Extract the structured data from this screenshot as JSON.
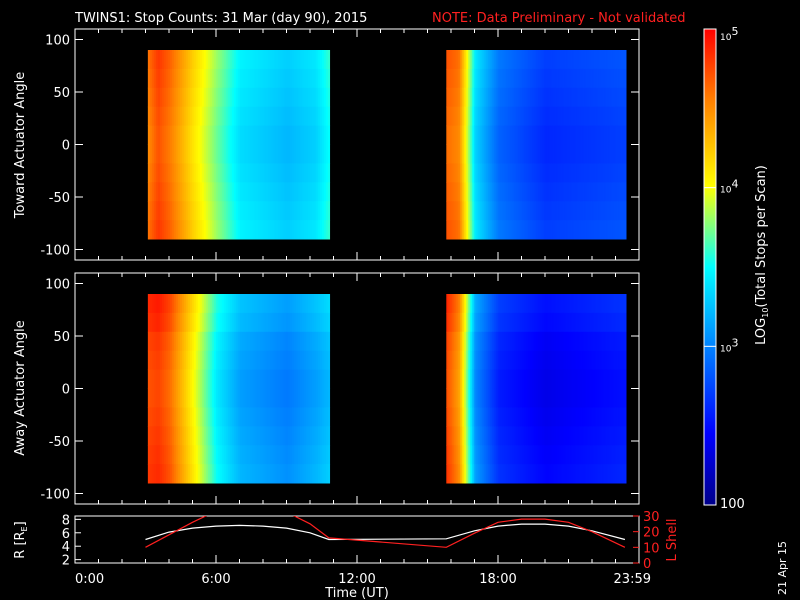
{
  "header": {
    "title": "TWINS1: Stop Counts: 31 Mar (day  90), 2015",
    "note": "NOTE: Data Preliminary - Not validated"
  },
  "side_date": "21 Apr 15",
  "colors": {
    "background": "#000000",
    "axes": "#ffffff",
    "note": "#ff2020",
    "r_line": "#ffffff",
    "lshell_line": "#ff2020"
  },
  "chart_data": [
    {
      "type": "heatmap",
      "ylabel": "Toward Actuator Angle",
      "ylim": [
        -110,
        110
      ],
      "yticks": [
        "100",
        "50",
        "0",
        "-50",
        "-100"
      ],
      "xlim": [
        0,
        24
      ],
      "data_segments": [
        [
          3.1,
          10.8
        ],
        [
          15.8,
          23.4
        ]
      ],
      "color_scale": "log",
      "profile": [
        {
          "t": 3.1,
          "log": 4.5
        },
        {
          "t": 3.5,
          "log": 4.7
        },
        {
          "t": 4.0,
          "log": 4.55
        },
        {
          "t": 5.0,
          "log": 4.1
        },
        {
          "t": 6.0,
          "log": 3.7
        },
        {
          "t": 7.0,
          "log": 3.35
        },
        {
          "t": 9.0,
          "log": 3.2
        },
        {
          "t": 10.2,
          "log": 3.3
        },
        {
          "t": 10.8,
          "log": 3.5
        },
        {
          "t": 15.8,
          "log": 4.6
        },
        {
          "t": 16.3,
          "log": 4.5
        },
        {
          "t": 17.0,
          "log": 3.3
        },
        {
          "t": 18.0,
          "log": 2.85
        },
        {
          "t": 20.0,
          "log": 2.6
        },
        {
          "t": 23.4,
          "log": 2.7
        }
      ]
    },
    {
      "type": "heatmap",
      "ylabel": "Away Actuator Angle",
      "ylim": [
        -110,
        110
      ],
      "yticks": [
        "100",
        "50",
        "0",
        "-50",
        "-100"
      ],
      "xlim": [
        0,
        24
      ],
      "data_segments": [
        [
          3.1,
          10.8
        ],
        [
          15.8,
          23.4
        ]
      ],
      "color_scale": "log",
      "profile": [
        {
          "t": 3.1,
          "log": 4.7
        },
        {
          "t": 3.5,
          "log": 4.75
        },
        {
          "t": 4.0,
          "log": 4.6
        },
        {
          "t": 5.0,
          "log": 4.0
        },
        {
          "t": 6.0,
          "log": 3.4
        },
        {
          "t": 7.0,
          "log": 3.1
        },
        {
          "t": 9.0,
          "log": 2.95
        },
        {
          "t": 10.2,
          "log": 3.1
        },
        {
          "t": 10.8,
          "log": 3.2
        },
        {
          "t": 15.8,
          "log": 4.7
        },
        {
          "t": 16.3,
          "log": 4.4
        },
        {
          "t": 17.0,
          "log": 3.0
        },
        {
          "t": 18.0,
          "log": 2.55
        },
        {
          "t": 20.0,
          "log": 2.35
        },
        {
          "t": 23.4,
          "log": 2.5
        }
      ]
    },
    {
      "type": "line",
      "ylabel": "R [R",
      "ylabel_sub": "E",
      "ylabel_tail": "]",
      "ylabel_right": "L Shell",
      "ylim_left": [
        1.5,
        8.5
      ],
      "ylim_right": [
        0,
        30
      ],
      "yticks_left": [
        "8",
        "6",
        "4",
        "2"
      ],
      "yticks_right": [
        "30",
        "20",
        "10",
        "0"
      ],
      "xlabel": "Time (UT)",
      "xticks": [
        {
          "t": 0,
          "label": "0:00"
        },
        {
          "t": 6,
          "label": "6:00"
        },
        {
          "t": 12,
          "label": "12:00"
        },
        {
          "t": 18,
          "label": "18:00"
        },
        {
          "t": 24,
          "label": "23:59"
        }
      ],
      "series": [
        {
          "key": "R",
          "axis": "left",
          "x": [
            3,
            4,
            5,
            6,
            7,
            8,
            9,
            10,
            10.8,
            15.8,
            17,
            18,
            19,
            20,
            21,
            22,
            23.4
          ],
          "y": [
            5.0,
            6.1,
            6.7,
            7.0,
            7.1,
            7.0,
            6.7,
            6.0,
            5.0,
            5.1,
            6.3,
            7.0,
            7.3,
            7.3,
            7.0,
            6.3,
            5.0
          ]
        },
        {
          "key": "L",
          "axis": "right",
          "x": [
            3,
            4,
            5,
            5.7,
            9.2,
            10,
            10.8,
            15.8,
            17,
            18,
            19,
            20,
            21,
            22,
            23.4
          ],
          "y": [
            10,
            18,
            26,
            31,
            31,
            25,
            16,
            10,
            19,
            26,
            28,
            28,
            26,
            20,
            10
          ]
        }
      ]
    }
  ],
  "colorbar": {
    "label_prefix": "LOG",
    "label_sub": "10",
    "label_suffix": "(Total Stops per Scan)",
    "scale": "log",
    "range_log": [
      2,
      5
    ],
    "ticks": [
      {
        "log": 5,
        "base": "10",
        "exp": "5"
      },
      {
        "log": 4,
        "base": "10",
        "exp": "4"
      },
      {
        "log": 3,
        "base": "10",
        "exp": "3"
      },
      {
        "log": 2,
        "base": "100",
        "exp": ""
      }
    ]
  }
}
